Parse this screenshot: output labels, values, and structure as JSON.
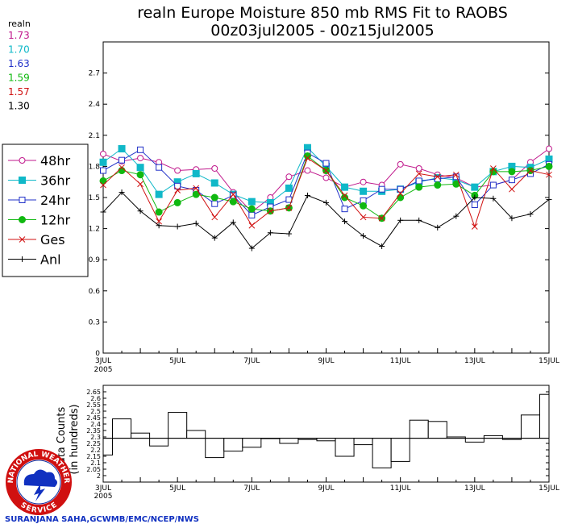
{
  "header": {
    "title_line1": "realn Europe Moisture 850 mb RMS Fit to RAOBS",
    "title_line2": "00z03jul2005 - 00z15jul2005"
  },
  "means": {
    "label": "realn",
    "items": [
      {
        "value": "1.73",
        "color": "#c0188c"
      },
      {
        "value": "1.70",
        "color": "#10b8c8"
      },
      {
        "value": "1.63",
        "color": "#2030c8"
      },
      {
        "value": "1.59",
        "color": "#10b810"
      },
      {
        "value": "1.57",
        "color": "#d01010"
      },
      {
        "value": "1.30",
        "color": "#000000"
      }
    ]
  },
  "credit": "SURANJANA SAHA,GCWMB/EMC/NCEP/NWS",
  "logo": {
    "top_text": "NATIONAL WEATHER",
    "bottom_text": "SERVICE"
  },
  "chart_data": [
    {
      "type": "line",
      "title": "realn Europe Moisture 850 mb RMS Fit to RAOBS",
      "subtitle": "00z03jul2005 - 00z15jul2005",
      "x": [
        0,
        1,
        2,
        3,
        4,
        5,
        6,
        7,
        8,
        9,
        10,
        11,
        12,
        13,
        14,
        15,
        16,
        17,
        18,
        19,
        20,
        21,
        22,
        23,
        24
      ],
      "xlim": [
        0,
        24
      ],
      "xticks": [
        {
          "pos": 0,
          "label": "3JUL",
          "sublabel": "2005"
        },
        {
          "pos": 4,
          "label": "5JUL",
          "sublabel": ""
        },
        {
          "pos": 8,
          "label": "7JUL",
          "sublabel": ""
        },
        {
          "pos": 12,
          "label": "9JUL",
          "sublabel": ""
        },
        {
          "pos": 16,
          "label": "11JUL",
          "sublabel": ""
        },
        {
          "pos": 20,
          "label": "13JUL",
          "sublabel": ""
        },
        {
          "pos": 24,
          "label": "15JUL",
          "sublabel": ""
        }
      ],
      "ylim": [
        0,
        3.0
      ],
      "yticks": [
        "0",
        "0.3",
        "0.6",
        "0.9",
        "1.2",
        "1.5",
        "1.8",
        "2.1",
        "2.4",
        "2.7"
      ],
      "grid": false,
      "legend_position": "left",
      "series": [
        {
          "name": "48hr",
          "color": "#c0188c",
          "marker": "circle-open",
          "values": [
            1.92,
            1.85,
            1.88,
            1.84,
            1.76,
            1.77,
            1.78,
            1.55,
            1.36,
            1.5,
            1.7,
            1.76,
            1.69,
            1.6,
            1.65,
            1.62,
            1.82,
            1.78,
            1.72,
            1.69,
            1.6,
            1.62,
            1.67,
            1.84,
            1.97
          ]
        },
        {
          "name": "36hr",
          "color": "#10b8c8",
          "marker": "square-filled",
          "values": [
            1.84,
            1.97,
            1.79,
            1.53,
            1.65,
            1.73,
            1.64,
            1.53,
            1.46,
            1.45,
            1.59,
            1.98,
            1.8,
            1.6,
            1.56,
            1.56,
            1.58,
            1.65,
            1.69,
            1.67,
            1.6,
            1.75,
            1.8,
            1.79,
            1.87
          ]
        },
        {
          "name": "24hr",
          "color": "#2030c8",
          "marker": "square-open",
          "values": [
            1.76,
            1.86,
            1.96,
            1.79,
            1.61,
            1.57,
            1.44,
            1.52,
            1.33,
            1.41,
            1.48,
            1.93,
            1.83,
            1.39,
            1.47,
            1.58,
            1.58,
            1.66,
            1.68,
            1.7,
            1.43,
            1.62,
            1.67,
            1.73,
            1.82
          ]
        },
        {
          "name": "12hr",
          "color": "#10b810",
          "marker": "circle-filled",
          "values": [
            1.66,
            1.76,
            1.72,
            1.36,
            1.45,
            1.53,
            1.5,
            1.46,
            1.39,
            1.37,
            1.4,
            1.9,
            1.76,
            1.5,
            1.42,
            1.3,
            1.5,
            1.6,
            1.62,
            1.63,
            1.52,
            1.75,
            1.75,
            1.76,
            1.8
          ]
        },
        {
          "name": "Ges",
          "color": "#d01010",
          "marker": "x",
          "values": [
            1.62,
            1.79,
            1.63,
            1.27,
            1.57,
            1.59,
            1.31,
            1.53,
            1.23,
            1.37,
            1.4,
            1.88,
            1.76,
            1.52,
            1.31,
            1.3,
            1.54,
            1.73,
            1.7,
            1.72,
            1.22,
            1.78,
            1.58,
            1.76,
            1.72
          ]
        },
        {
          "name": "Anl",
          "color": "#000000",
          "marker": "plus",
          "values": [
            1.36,
            1.55,
            1.37,
            1.23,
            1.22,
            1.25,
            1.11,
            1.26,
            1.01,
            1.16,
            1.15,
            1.52,
            1.45,
            1.27,
            1.13,
            1.03,
            1.28,
            1.28,
            1.21,
            1.32,
            1.5,
            1.49,
            1.3,
            1.34,
            1.48
          ]
        }
      ]
    },
    {
      "type": "bar",
      "title": "",
      "ylabel_line1": "Data Counts",
      "ylabel_line2": "(in hundreds)",
      "x": [
        0,
        1,
        2,
        3,
        4,
        5,
        6,
        7,
        8,
        9,
        10,
        11,
        12,
        13,
        14,
        15,
        16,
        17,
        18,
        19,
        20,
        21,
        22,
        23,
        24
      ],
      "xlim": [
        0,
        24
      ],
      "ylim": [
        1.95,
        2.7
      ],
      "yticks": [
        "2",
        "2.05",
        "2.1",
        "2.15",
        "2.2",
        "2.25",
        "2.3",
        "2.35",
        "2.4",
        "2.45",
        "2.5",
        "2.55",
        "2.6",
        "2.65"
      ],
      "reference_line": 2.29,
      "values": [
        2.16,
        2.44,
        2.33,
        2.23,
        2.49,
        2.35,
        2.14,
        2.19,
        2.22,
        2.29,
        2.25,
        2.28,
        2.27,
        2.15,
        2.24,
        2.06,
        2.11,
        2.43,
        2.42,
        2.3,
        2.26,
        2.31,
        2.28,
        2.47,
        2.63
      ]
    }
  ]
}
